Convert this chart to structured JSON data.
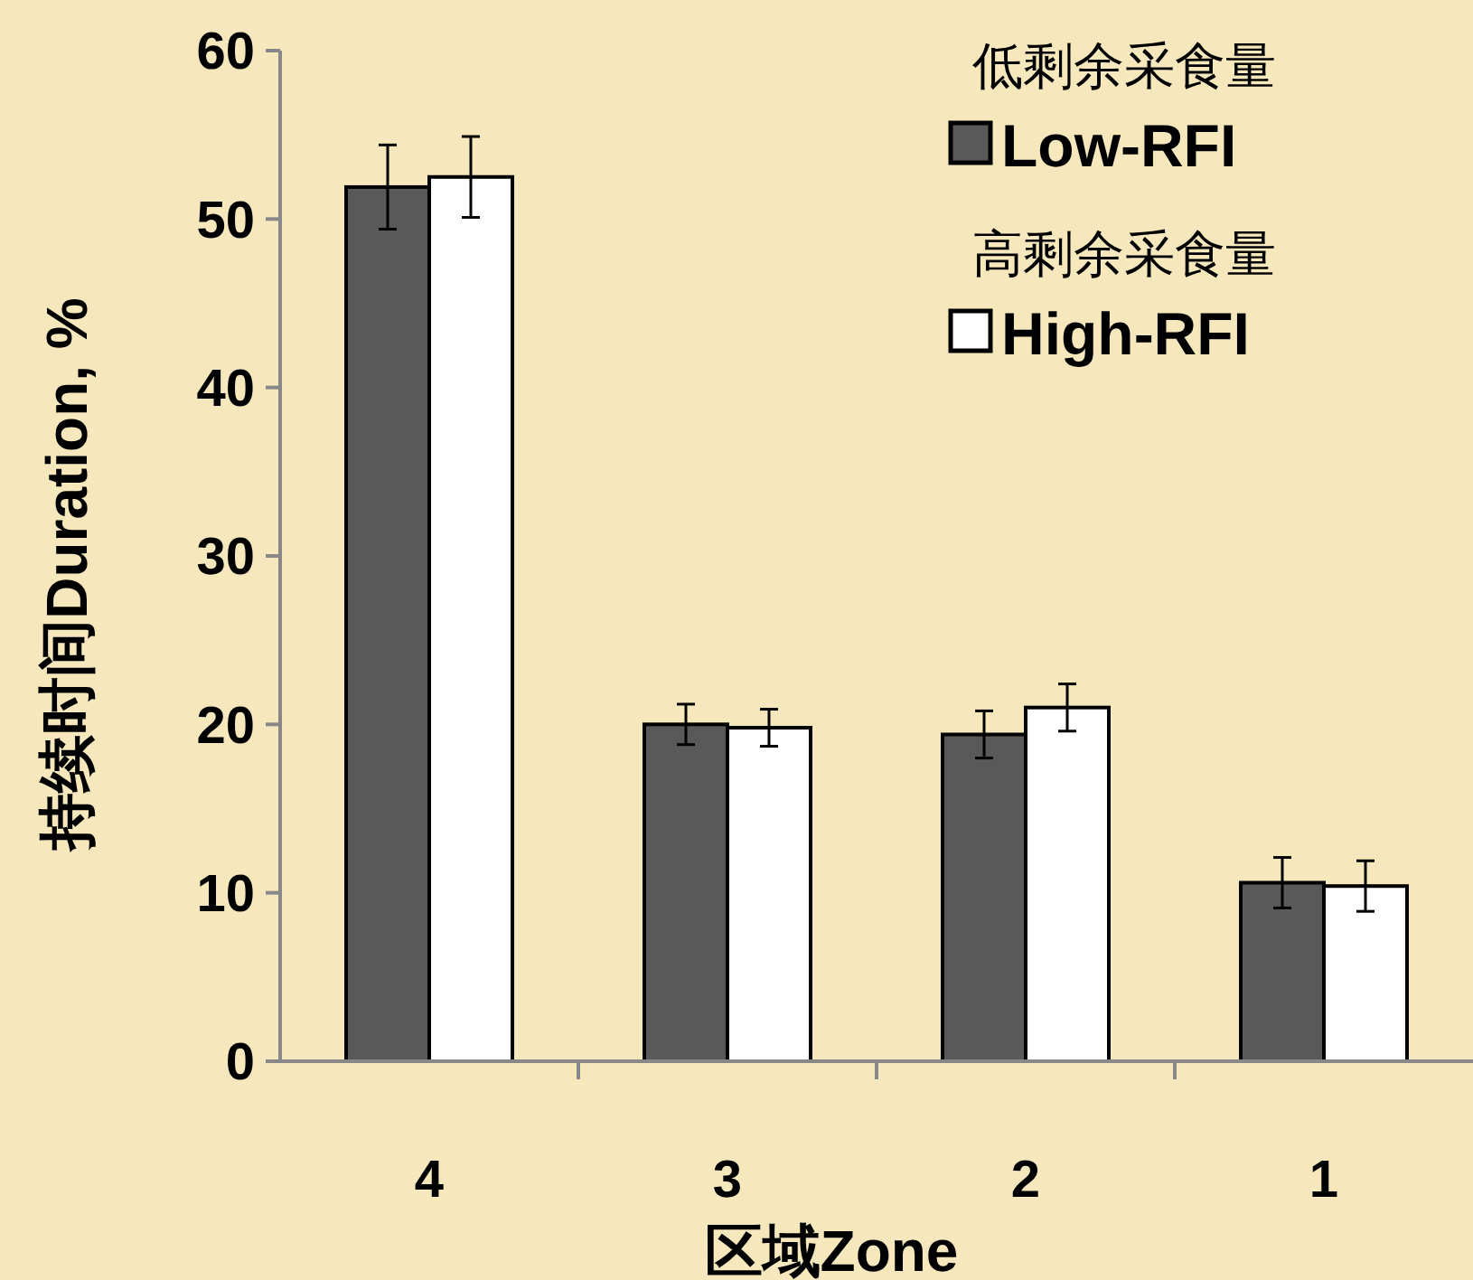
{
  "chart_data": {
    "type": "bar",
    "xlabel": "区域Zone",
    "ylabel": "持续时间Duration, %",
    "categories": [
      "4",
      "3",
      "2",
      "1"
    ],
    "series": [
      {
        "name": "低剩余采食量\nLow-RFI",
        "color": "#595959",
        "values": [
          51.9,
          20.0,
          19.4,
          10.6
        ],
        "errors": [
          2.5,
          1.2,
          1.4,
          1.5
        ]
      },
      {
        "name": "高剩余采食量\nHigh-RFI",
        "color": "#ffffff",
        "values": [
          52.5,
          19.8,
          21.0,
          10.4
        ],
        "errors": [
          2.4,
          1.1,
          1.4,
          1.5
        ]
      }
    ],
    "ylim": [
      0,
      60
    ],
    "yticks": [
      0,
      10,
      20,
      30,
      40,
      50,
      60
    ],
    "grid": false,
    "legend": "top right"
  }
}
